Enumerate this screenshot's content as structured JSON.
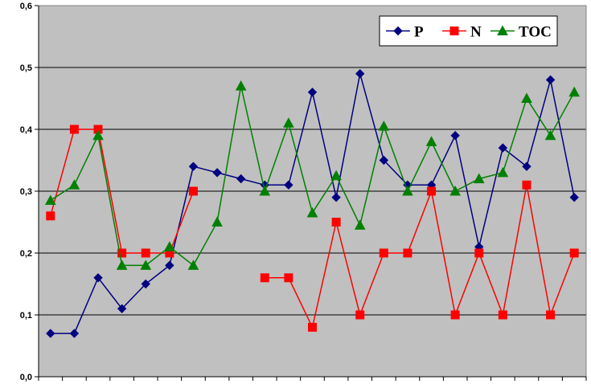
{
  "chart_data": {
    "type": "line",
    "title": "",
    "xlabel": "",
    "ylabel": "",
    "ylim": [
      0,
      0.6
    ],
    "y_ticks": [
      "0,0",
      "0,1",
      "0,2",
      "0,3",
      "0,4",
      "0,5",
      "0,6"
    ],
    "x_count": 23,
    "grid": "horizontal",
    "legend_position": "top-right",
    "plot_background": "#c0c0c0",
    "series": [
      {
        "name": "P",
        "color": "#000080",
        "marker": "diamond",
        "values": [
          0.07,
          0.07,
          0.16,
          0.11,
          0.15,
          0.18,
          0.34,
          0.33,
          0.32,
          0.31,
          0.31,
          0.46,
          0.29,
          0.49,
          0.35,
          0.31,
          0.31,
          0.39,
          0.21,
          0.37,
          0.34,
          0.48,
          0.29
        ]
      },
      {
        "name": "N",
        "color": "#ff0000",
        "marker": "square",
        "values": [
          0.26,
          0.4,
          0.4,
          0.2,
          0.2,
          0.2,
          0.3,
          null,
          null,
          0.16,
          0.16,
          0.08,
          0.25,
          0.1,
          0.2,
          0.2,
          0.3,
          0.1,
          0.2,
          0.1,
          0.31,
          0.1,
          0.2
        ]
      },
      {
        "name": "TOC",
        "color": "#008000",
        "marker": "triangle",
        "values": [
          0.285,
          0.31,
          0.39,
          0.18,
          0.18,
          0.21,
          0.18,
          0.25,
          0.47,
          0.3,
          0.41,
          0.265,
          0.325,
          0.245,
          0.405,
          0.3,
          0.38,
          0.3,
          0.32,
          0.33,
          0.45,
          0.39,
          0.46
        ]
      }
    ]
  }
}
